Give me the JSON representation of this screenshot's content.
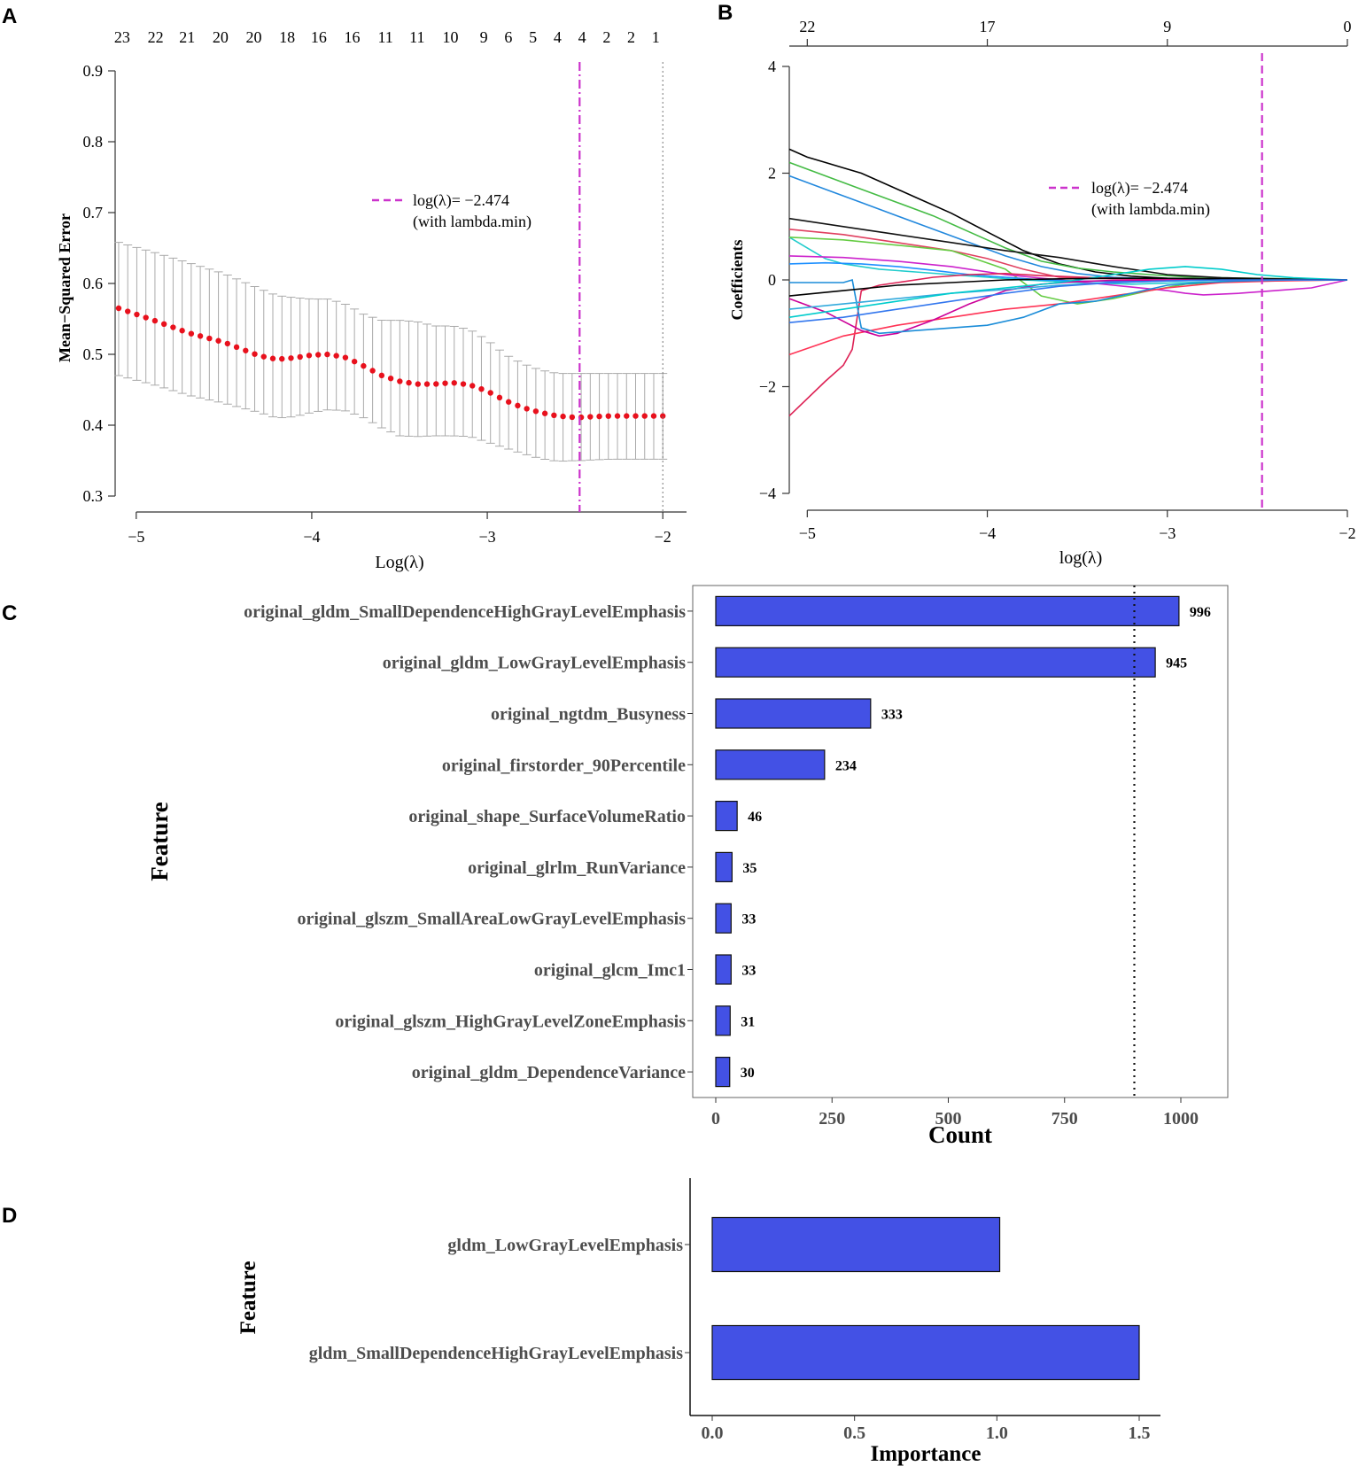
{
  "colors": {
    "mse_point": "#e8111d",
    "errorbar": "#aaaaaa",
    "lambda_line": "#cc33cc",
    "bar_fill": "#4351e5",
    "bar_stroke": "#111111",
    "axis": "#333333"
  },
  "chart_data": [
    {
      "panel": "A",
      "type": "scatter",
      "xlabel": "Log(λ)",
      "ylabel": "Mean−Squared Error",
      "xlim": [
        -5.12,
        -1.88
      ],
      "ylim": [
        0.3,
        0.9
      ],
      "xticks": [
        -5,
        -4,
        -3,
        -2
      ],
      "xtick_labels": [
        "−5",
        "−4",
        "−3",
        "−2"
      ],
      "yticks": [
        0.3,
        0.4,
        0.5,
        0.6,
        0.7,
        0.8,
        0.9
      ],
      "ytick_labels": [
        "0.3",
        "0.4",
        "0.5",
        "0.6",
        "0.7",
        "0.8",
        "0.9"
      ],
      "top_counts": {
        "x": [
          -5.08,
          -4.89,
          -4.71,
          -4.52,
          -4.33,
          -4.14,
          -3.96,
          -3.77,
          -3.58,
          -3.4,
          -3.21,
          -3.02,
          -2.88,
          -2.74,
          -2.6,
          -2.46,
          -2.32,
          -2.18,
          -2.04
        ],
        "labels": [
          "23",
          "22",
          "21",
          "20",
          "20",
          "18",
          "16",
          "16",
          "11",
          "11",
          "10",
          "9",
          "6",
          "5",
          "4",
          "4",
          "2",
          "2",
          "1"
        ]
      },
      "curve_knots": {
        "x": [
          -5.1,
          -4.9,
          -4.7,
          -4.5,
          -4.3,
          -4.2,
          -4.1,
          -4.0,
          -3.9,
          -3.8,
          -3.7,
          -3.6,
          -3.5,
          -3.4,
          -3.3,
          -3.2,
          -3.1,
          -3.0,
          -2.9,
          -2.8,
          -2.7,
          -2.6,
          -2.5,
          -2.474,
          -2.4,
          -2.3,
          -2.2,
          -2.1,
          -2.0
        ],
        "mse": [
          0.565,
          0.548,
          0.53,
          0.517,
          0.498,
          0.493,
          0.495,
          0.499,
          0.5,
          0.495,
          0.483,
          0.47,
          0.462,
          0.458,
          0.458,
          0.46,
          0.457,
          0.448,
          0.435,
          0.425,
          0.418,
          0.413,
          0.411,
          0.411,
          0.412,
          0.413,
          0.413,
          0.413,
          0.413
        ],
        "upper": [
          0.658,
          0.644,
          0.629,
          0.614,
          0.593,
          0.583,
          0.58,
          0.578,
          0.578,
          0.57,
          0.556,
          0.548,
          0.548,
          0.546,
          0.54,
          0.54,
          0.535,
          0.52,
          0.5,
          0.487,
          0.478,
          0.473,
          0.473,
          0.473,
          0.473,
          0.473,
          0.473,
          0.473,
          0.473
        ],
        "lower": [
          0.47,
          0.457,
          0.442,
          0.431,
          0.418,
          0.41,
          0.412,
          0.418,
          0.422,
          0.42,
          0.41,
          0.396,
          0.385,
          0.384,
          0.385,
          0.385,
          0.384,
          0.376,
          0.368,
          0.36,
          0.353,
          0.349,
          0.35,
          0.35,
          0.351,
          0.352,
          0.352,
          0.352,
          0.352
        ]
      },
      "n_points": 61,
      "x_start": -5.1,
      "x_end": -2.0,
      "vline_min": -2.474,
      "vline_1se": -2.0,
      "legend": {
        "line1": "log(λ)= −2.474",
        "line2": "(with lambda.min)"
      }
    },
    {
      "panel": "B",
      "type": "line",
      "xlabel": "log(λ)",
      "ylabel": "Coefficients",
      "xlim": [
        -5.1,
        -2.0
      ],
      "ylim": [
        -4.2,
        4.0
      ],
      "xticks": [
        -5,
        -4,
        -3,
        -2
      ],
      "xtick_labels": [
        "−5",
        "−4",
        "−3",
        "−2"
      ],
      "yticks": [
        -4,
        -2,
        0,
        2,
        4
      ],
      "ytick_labels": [
        "−4",
        "−2",
        "0",
        "2",
        "4"
      ],
      "top_axis": {
        "x": [
          -5,
          -4,
          -3,
          -2
        ],
        "labels": [
          "22",
          "17",
          "9",
          "0"
        ]
      },
      "vline": -2.474,
      "legend": {
        "line1": "log(λ)= −2.474",
        "line2": "(with lambda.min)"
      },
      "series": [
        {
          "name": "path1",
          "color": "#000000",
          "x": [
            -5.1,
            -5.0,
            -4.9,
            -4.8,
            -4.7,
            -4.6,
            -4.4,
            -4.2,
            -4.0,
            -3.8,
            -3.6,
            -3.4,
            -3.2,
            -3.0,
            -2.8,
            -2.6,
            -2.4,
            -2.2,
            -2.0
          ],
          "y": [
            2.45,
            2.3,
            2.2,
            2.1,
            2.0,
            1.85,
            1.55,
            1.25,
            0.9,
            0.55,
            0.3,
            0.15,
            0.07,
            0.03,
            0.02,
            0.02,
            0.01,
            0.01,
            0.0
          ]
        },
        {
          "name": "path2",
          "color": "#44bb44",
          "x": [
            -5.1,
            -4.9,
            -4.7,
            -4.5,
            -4.3,
            -4.1,
            -3.9,
            -3.7,
            -3.5,
            -3.3,
            -3.1,
            -2.9,
            -2.7,
            -2.5,
            -2.3,
            -2.0
          ],
          "y": [
            2.2,
            1.95,
            1.7,
            1.45,
            1.2,
            0.9,
            0.6,
            0.35,
            0.22,
            0.15,
            0.1,
            0.06,
            0.04,
            0.03,
            0.02,
            0.0
          ]
        },
        {
          "name": "path3",
          "color": "#2288dd",
          "x": [
            -5.1,
            -4.9,
            -4.7,
            -4.5,
            -4.3,
            -4.1,
            -3.9,
            -3.7,
            -3.5,
            -3.3,
            -3.1,
            -2.9,
            -2.7,
            -2.5,
            -2.3,
            -2.0
          ],
          "y": [
            1.95,
            1.7,
            1.45,
            1.2,
            0.95,
            0.7,
            0.45,
            0.25,
            0.12,
            0.05,
            0.02,
            0.01,
            0.01,
            0.0,
            0.0,
            0.0
          ]
        },
        {
          "name": "path4",
          "color": "#111111",
          "x": [
            -5.1,
            -4.8,
            -4.5,
            -4.2,
            -3.9,
            -3.6,
            -3.3,
            -3.0,
            -2.7,
            -2.4,
            -2.0
          ],
          "y": [
            1.15,
            1.0,
            0.85,
            0.7,
            0.55,
            0.42,
            0.25,
            0.1,
            0.04,
            0.02,
            0.0
          ]
        },
        {
          "name": "path5",
          "color": "#e04060",
          "x": [
            -5.1,
            -4.8,
            -4.5,
            -4.2,
            -4.0,
            -3.8,
            -3.6,
            -3.3,
            -3.0,
            -2.7,
            -2.4,
            -2.0
          ],
          "y": [
            0.95,
            0.85,
            0.7,
            0.55,
            0.4,
            0.2,
            0.05,
            0.02,
            0.01,
            0.0,
            0.0,
            0.0
          ]
        },
        {
          "name": "path6",
          "color": "#22cccc",
          "x": [
            -5.1,
            -5.0,
            -4.9,
            -4.8,
            -4.7,
            -4.6,
            -4.4,
            -4.2,
            -4.0,
            -3.8,
            -3.5,
            -3.2,
            -2.9,
            -2.6,
            -2.3,
            -2.0
          ],
          "y": [
            0.8,
            0.6,
            0.4,
            0.3,
            0.25,
            0.2,
            0.15,
            0.1,
            0.05,
            0.0,
            -0.05,
            -0.08,
            -0.05,
            -0.02,
            0.0,
            0.0
          ]
        },
        {
          "name": "path7",
          "color": "#66cc44",
          "x": [
            -5.1,
            -4.8,
            -4.5,
            -4.2,
            -3.9,
            -3.7,
            -3.5,
            -3.3,
            -3.1,
            -2.9,
            -2.6,
            -2.3,
            -2.0
          ],
          "y": [
            0.8,
            0.75,
            0.65,
            0.55,
            0.2,
            -0.3,
            -0.45,
            -0.35,
            -0.2,
            -0.08,
            -0.03,
            -0.01,
            0.0
          ]
        },
        {
          "name": "path8",
          "color": "#cc22cc",
          "x": [
            -5.1,
            -4.8,
            -4.5,
            -4.2,
            -3.9,
            -3.6,
            -3.3,
            -3.0,
            -2.9,
            -2.8,
            -2.6,
            -2.4,
            -2.2,
            -2.0
          ],
          "y": [
            0.45,
            0.42,
            0.35,
            0.25,
            0.1,
            0.0,
            -0.1,
            -0.2,
            -0.25,
            -0.28,
            -0.25,
            -0.2,
            -0.15,
            0.0
          ]
        },
        {
          "name": "path9",
          "color": "#1e90ff",
          "x": [
            -5.1,
            -4.9,
            -4.7,
            -4.5,
            -4.3,
            -4.1,
            -3.9,
            -3.7,
            -3.5,
            -3.3,
            -3.1,
            -2.9,
            -2.7,
            -2.5,
            -2.3,
            -2.0
          ],
          "y": [
            0.3,
            0.32,
            0.3,
            0.25,
            0.18,
            0.1,
            0.05,
            0.0,
            -0.02,
            -0.03,
            -0.02,
            -0.01,
            0.0,
            0.0,
            0.0,
            0.0
          ]
        },
        {
          "name": "path10",
          "color": "#dd2255",
          "x": [
            -5.1,
            -4.9,
            -4.8,
            -4.75,
            -4.7,
            -4.6,
            -4.5,
            -4.3,
            -4.1,
            -3.9,
            -3.7,
            -3.4,
            -3.1,
            -2.8,
            -2.5,
            -2.0
          ],
          "y": [
            -2.55,
            -1.9,
            -1.6,
            -1.3,
            -0.2,
            -0.1,
            -0.05,
            0.05,
            0.1,
            0.12,
            0.08,
            0.04,
            0.02,
            0.01,
            0.0,
            0.0
          ]
        },
        {
          "name": "path11",
          "color": "#ff3355",
          "x": [
            -5.1,
            -4.8,
            -4.5,
            -4.2,
            -3.9,
            -3.6,
            -3.3,
            -3.0,
            -2.7,
            -2.4,
            -2.0
          ],
          "y": [
            -1.4,
            -1.05,
            -0.85,
            -0.7,
            -0.55,
            -0.45,
            -0.3,
            -0.15,
            -0.05,
            -0.02,
            0.0
          ]
        },
        {
          "name": "path12",
          "color": "#cc0099",
          "x": [
            -5.1,
            -4.9,
            -4.7,
            -4.6,
            -4.5,
            -4.3,
            -4.1,
            -3.9,
            -3.7,
            -3.5,
            -3.3,
            -3.0,
            -2.7,
            -2.4,
            -2.0
          ],
          "y": [
            -0.35,
            -0.6,
            -0.95,
            -1.05,
            -1.0,
            -0.75,
            -0.45,
            -0.2,
            -0.08,
            -0.03,
            -0.01,
            0.0,
            0.0,
            0.0,
            0.0
          ]
        },
        {
          "name": "path13",
          "color": "#1a8cd8",
          "x": [
            -5.1,
            -4.9,
            -4.8,
            -4.75,
            -4.7,
            -4.6,
            -4.4,
            -4.2,
            -4.0,
            -3.8,
            -3.6,
            -3.4,
            -3.2,
            -3.0,
            -2.8,
            -2.6,
            -2.3,
            -2.0
          ],
          "y": [
            -0.05,
            -0.05,
            -0.05,
            0.0,
            -0.9,
            -1.0,
            -0.95,
            -0.9,
            -0.85,
            -0.7,
            -0.45,
            -0.4,
            -0.25,
            -0.1,
            -0.05,
            -0.02,
            0.0,
            0.0
          ]
        },
        {
          "name": "path14",
          "color": "#33aadd",
          "x": [
            -5.1,
            -4.8,
            -4.5,
            -4.2,
            -3.9,
            -3.6,
            -3.3,
            -3.0,
            -2.7,
            -2.4,
            -2.0
          ],
          "y": [
            -0.55,
            -0.45,
            -0.35,
            -0.25,
            -0.18,
            -0.1,
            -0.05,
            -0.02,
            0.0,
            0.0,
            0.0
          ]
        },
        {
          "name": "path15",
          "color": "#00cccc",
          "x": [
            -5.1,
            -4.8,
            -4.5,
            -4.2,
            -3.9,
            -3.6,
            -3.3,
            -3.1,
            -2.9,
            -2.7,
            -2.5,
            -2.3,
            -2.0
          ],
          "y": [
            -0.7,
            -0.55,
            -0.4,
            -0.25,
            -0.15,
            -0.05,
            0.1,
            0.2,
            0.25,
            0.2,
            0.1,
            0.04,
            0.0
          ]
        },
        {
          "name": "path16",
          "color": "#000000",
          "x": [
            -5.1,
            -4.8,
            -4.5,
            -4.2,
            -3.9,
            -3.6,
            -3.3,
            -3.0,
            -2.7,
            -2.4,
            -2.0
          ],
          "y": [
            -0.3,
            -0.2,
            -0.1,
            -0.05,
            0.0,
            0.02,
            0.03,
            0.03,
            0.02,
            0.01,
            0.0
          ]
        },
        {
          "name": "path17",
          "color": "#3377ee",
          "x": [
            -5.1,
            -4.8,
            -4.5,
            -4.2,
            -3.9,
            -3.6,
            -3.3,
            -3.0,
            -2.7,
            -2.4,
            -2.0
          ],
          "y": [
            -0.8,
            -0.7,
            -0.55,
            -0.4,
            -0.25,
            -0.12,
            -0.05,
            -0.02,
            0.0,
            0.0,
            0.0
          ]
        }
      ]
    },
    {
      "panel": "C",
      "type": "bar",
      "orientation": "horizontal",
      "xlabel": "Count",
      "ylabel": "Feature",
      "xlim": [
        -50,
        1100
      ],
      "xticks": [
        0,
        250,
        500,
        750,
        1000
      ],
      "xtick_labels": [
        "0",
        "250",
        "500",
        "750",
        "1000"
      ],
      "vline": 900,
      "categories": [
        "original_gldm_SmallDependenceHighGrayLevelEmphasis",
        "original_gldm_LowGrayLevelEmphasis",
        "original_ngtdm_Busyness",
        "original_firstorder_90Percentile",
        "original_shape_SurfaceVolumeRatio",
        "original_glrlm_RunVariance",
        "original_glszm_SmallAreaLowGrayLevelEmphasis",
        "original_glcm_Imc1",
        "original_glszm_HighGrayLevelZoneEmphasis",
        "original_gldm_DependenceVariance"
      ],
      "values": [
        996,
        945,
        333,
        234,
        46,
        35,
        33,
        33,
        31,
        30
      ],
      "value_labels": [
        "996",
        "945",
        "333",
        "234",
        "46",
        "35",
        "33",
        "33",
        "31",
        "30"
      ]
    },
    {
      "panel": "D",
      "type": "bar",
      "orientation": "horizontal",
      "xlabel": "Importance",
      "ylabel": "Feature",
      "xlim": [
        -0.07,
        1.57
      ],
      "xticks": [
        0.0,
        0.5,
        1.0,
        1.5
      ],
      "xtick_labels": [
        "0.0",
        "0.5",
        "1.0",
        "1.5"
      ],
      "categories": [
        "gldm_LowGrayLevelEmphasis",
        "gldm_SmallDependenceHighGrayLevelEmphasis"
      ],
      "values": [
        1.01,
        1.5
      ]
    }
  ]
}
